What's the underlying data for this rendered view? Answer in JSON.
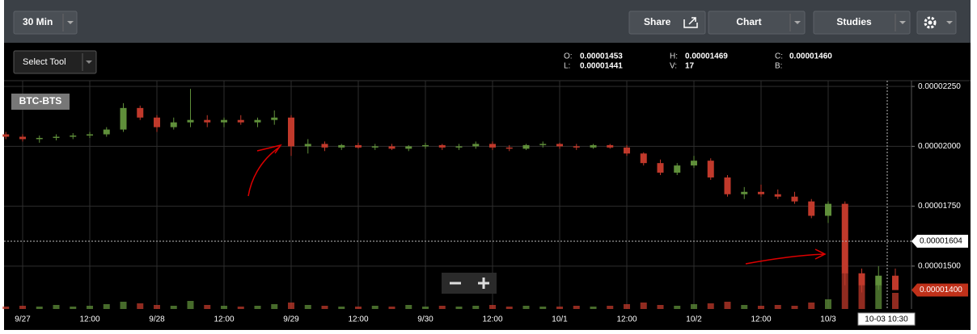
{
  "toolbar": {
    "interval": "30 Min",
    "share": "Share",
    "chart": "Chart",
    "studies": "Studies",
    "select_tool": "Select Tool"
  },
  "ohlc": {
    "o_label": "O:",
    "o": "0.00001453",
    "l_label": "L:",
    "l": "0.00001441",
    "h_label": "H:",
    "h": "0.00001469",
    "v_label": "V:",
    "v": "17",
    "c_label": "C:",
    "c": "0.00001460",
    "b_label": "B:"
  },
  "chart_data": {
    "type": "candlestick",
    "symbol": "BTC-BTS",
    "categories": [
      null,
      "9/27",
      null,
      null,
      null,
      "12:00",
      null,
      null,
      null,
      "9/28",
      null,
      null,
      null,
      "12:00",
      null,
      null,
      null,
      "9/29",
      null,
      null,
      null,
      "12:00",
      null,
      null,
      null,
      "9/30",
      null,
      null,
      null,
      "12:00",
      null,
      null,
      null,
      "10/1",
      null,
      null,
      null,
      "12:00",
      null,
      null,
      null,
      "10/2",
      null,
      null,
      null,
      "12:00",
      null,
      null,
      null,
      "10/3",
      null,
      null,
      null,
      null
    ],
    "open": [
      2.05e-05,
      2.04e-05,
      2.03e-05,
      2.035e-05,
      2.04e-05,
      2.045e-05,
      2.05e-05,
      2.07e-05,
      2.16e-05,
      2.12e-05,
      2.08e-05,
      2.1e-05,
      2.11e-05,
      2.1e-05,
      2.11e-05,
      2.1e-05,
      2.11e-05,
      2.12e-05,
      2e-05,
      2.01e-05,
      1.995e-05,
      2.005e-05,
      1.995e-05,
      2e-05,
      1.99e-05,
      2e-05,
      2.005e-05,
      1.995e-05,
      2e-05,
      2.01e-05,
      1.995e-05,
      1.99e-05,
      2.005e-05,
      2.01e-05,
      2e-05,
      1.995e-05,
      2.005e-05,
      1.995e-05,
      1.97e-05,
      1.93e-05,
      1.89e-05,
      1.92e-05,
      1.94e-05,
      1.87e-05,
      1.8e-05,
      1.81e-05,
      1.8e-05,
      1.79e-05,
      1.77e-05,
      1.71e-05,
      1.76e-05,
      1.47e-05,
      1.42e-05,
      1.46e-05
    ],
    "high": [
      2.06e-05,
      2.05e-05,
      2.045e-05,
      2.05e-05,
      2.055e-05,
      2.06e-05,
      2.08e-05,
      2.18e-05,
      2.17e-05,
      2.13e-05,
      2.12e-05,
      2.24e-05,
      2.13e-05,
      2.12e-05,
      2.13e-05,
      2.12e-05,
      2.15e-05,
      2.13e-05,
      2.03e-05,
      2.02e-05,
      2.01e-05,
      2.015e-05,
      2.01e-05,
      2.01e-05,
      2.005e-05,
      2.015e-05,
      2.01e-05,
      2.01e-05,
      2.02e-05,
      2.02e-05,
      2.005e-05,
      2.01e-05,
      2.02e-05,
      2.015e-05,
      2.01e-05,
      2.01e-05,
      2.01e-05,
      2.005e-05,
      1.975e-05,
      1.945e-05,
      1.93e-05,
      1.96e-05,
      1.95e-05,
      1.88e-05,
      1.83e-05,
      1.84e-05,
      1.82e-05,
      1.81e-05,
      1.78e-05,
      1.77e-05,
      1.77e-05,
      1.49e-05,
      1.5e-05,
      1.49e-05
    ],
    "low": [
      2.03e-05,
      2.02e-05,
      2.015e-05,
      2.025e-05,
      2.03e-05,
      2.035e-05,
      2.04e-05,
      2.06e-05,
      2.11e-05,
      2.06e-05,
      2.07e-05,
      2.08e-05,
      2.08e-05,
      2.08e-05,
      2.09e-05,
      2.08e-05,
      2.09e-05,
      1.96e-05,
      1.97e-05,
      1.98e-05,
      1.985e-05,
      1.99e-05,
      1.985e-05,
      1.985e-05,
      1.98e-05,
      1.99e-05,
      1.985e-05,
      1.985e-05,
      1.99e-05,
      1.985e-05,
      1.98e-05,
      1.985e-05,
      1.995e-05,
      1.99e-05,
      1.985e-05,
      1.99e-05,
      1.99e-05,
      1.96e-05,
      1.92e-05,
      1.88e-05,
      1.88e-05,
      1.91e-05,
      1.86e-05,
      1.79e-05,
      1.78e-05,
      1.79e-05,
      1.78e-05,
      1.76e-05,
      1.7e-05,
      1.68e-05,
      1.42e-05,
      1.39e-05,
      1.4e-05,
      1.4e-05
    ],
    "close": [
      2.04e-05,
      2.03e-05,
      2.035e-05,
      2.04e-05,
      2.045e-05,
      2.05e-05,
      2.07e-05,
      2.16e-05,
      2.12e-05,
      2.08e-05,
      2.1e-05,
      2.11e-05,
      2.1e-05,
      2.11e-05,
      2.1e-05,
      2.11e-05,
      2.12e-05,
      2e-05,
      2.01e-05,
      1.995e-05,
      2.005e-05,
      1.995e-05,
      2e-05,
      1.99e-05,
      2e-05,
      2.005e-05,
      1.995e-05,
      2e-05,
      2.01e-05,
      1.995e-05,
      1.99e-05,
      2.005e-05,
      2.01e-05,
      2e-05,
      1.995e-05,
      2.005e-05,
      1.995e-05,
      1.97e-05,
      1.93e-05,
      1.89e-05,
      1.92e-05,
      1.94e-05,
      1.87e-05,
      1.8e-05,
      1.81e-05,
      1.8e-05,
      1.79e-05,
      1.77e-05,
      1.71e-05,
      1.76e-05,
      1.47e-05,
      1.42e-05,
      1.46e-05,
      1.4e-05
    ],
    "volume": [
      3,
      4,
      3,
      5,
      3,
      4,
      6,
      9,
      7,
      5,
      4,
      10,
      5,
      4,
      3,
      4,
      6,
      8,
      5,
      4,
      3,
      3,
      4,
      3,
      5,
      3,
      4,
      3,
      4,
      5,
      3,
      4,
      3,
      3,
      4,
      3,
      4,
      6,
      8,
      5,
      4,
      6,
      7,
      9,
      5,
      4,
      5,
      4,
      8,
      12,
      45,
      35,
      30,
      20
    ],
    "up_color": "#5f8f3a",
    "down_color": "#c0392b",
    "ylim": [
      1.321e-05,
      2.274e-05
    ],
    "yticks": [
      {
        "value": 1.5e-05,
        "label": "0.00001500"
      },
      {
        "value": 1.75e-05,
        "label": "0.00001750"
      },
      {
        "value": 2e-05,
        "label": "0.00002000"
      },
      {
        "value": 2.25e-05,
        "label": "0.00002250"
      }
    ],
    "grid": true,
    "crosshair_price": {
      "value": 1.604e-05,
      "label": "0.00001604"
    },
    "crosshair_time": "10-03 10:30",
    "last_price": {
      "value": 1.4e-05,
      "label": "0.00001400"
    }
  }
}
